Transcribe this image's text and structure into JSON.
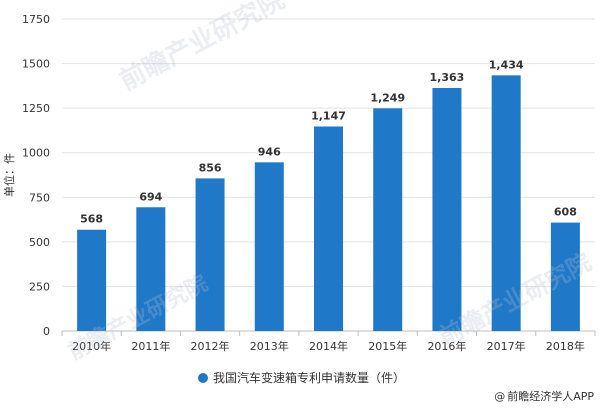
{
  "chart_data": {
    "type": "bar",
    "categories": [
      "2010年",
      "2011年",
      "2012年",
      "2013年",
      "2014年",
      "2015年",
      "2016年",
      "2017年",
      "2018年"
    ],
    "values": [
      568,
      694,
      856,
      946,
      1147,
      1249,
      1363,
      1434,
      608
    ],
    "value_labels": [
      "568",
      "694",
      "856",
      "946",
      "1,147",
      "1,249",
      "1,363",
      "1,434",
      "608"
    ],
    "series": [
      {
        "name": "我国汽车变速箱专利申请数量（件）",
        "values": [
          568,
          694,
          856,
          946,
          1147,
          1249,
          1363,
          1434,
          608
        ]
      }
    ],
    "ylabel": "单位：件",
    "ylim": [
      0,
      1750
    ],
    "yticks": [
      0,
      250,
      500,
      750,
      1000,
      1250,
      1500,
      1750
    ],
    "ytick_labels": [
      "0",
      "250",
      "500",
      "750",
      "1000",
      "1250",
      "1500",
      "1750"
    ],
    "grid": true,
    "legend_position": "bottom",
    "bar_color": "#1f78c8"
  },
  "legend_label": "我国汽车变速箱专利申请数量（件）",
  "watermark": "前瞻产业研究院",
  "credit": "前瞻经济学人APP"
}
